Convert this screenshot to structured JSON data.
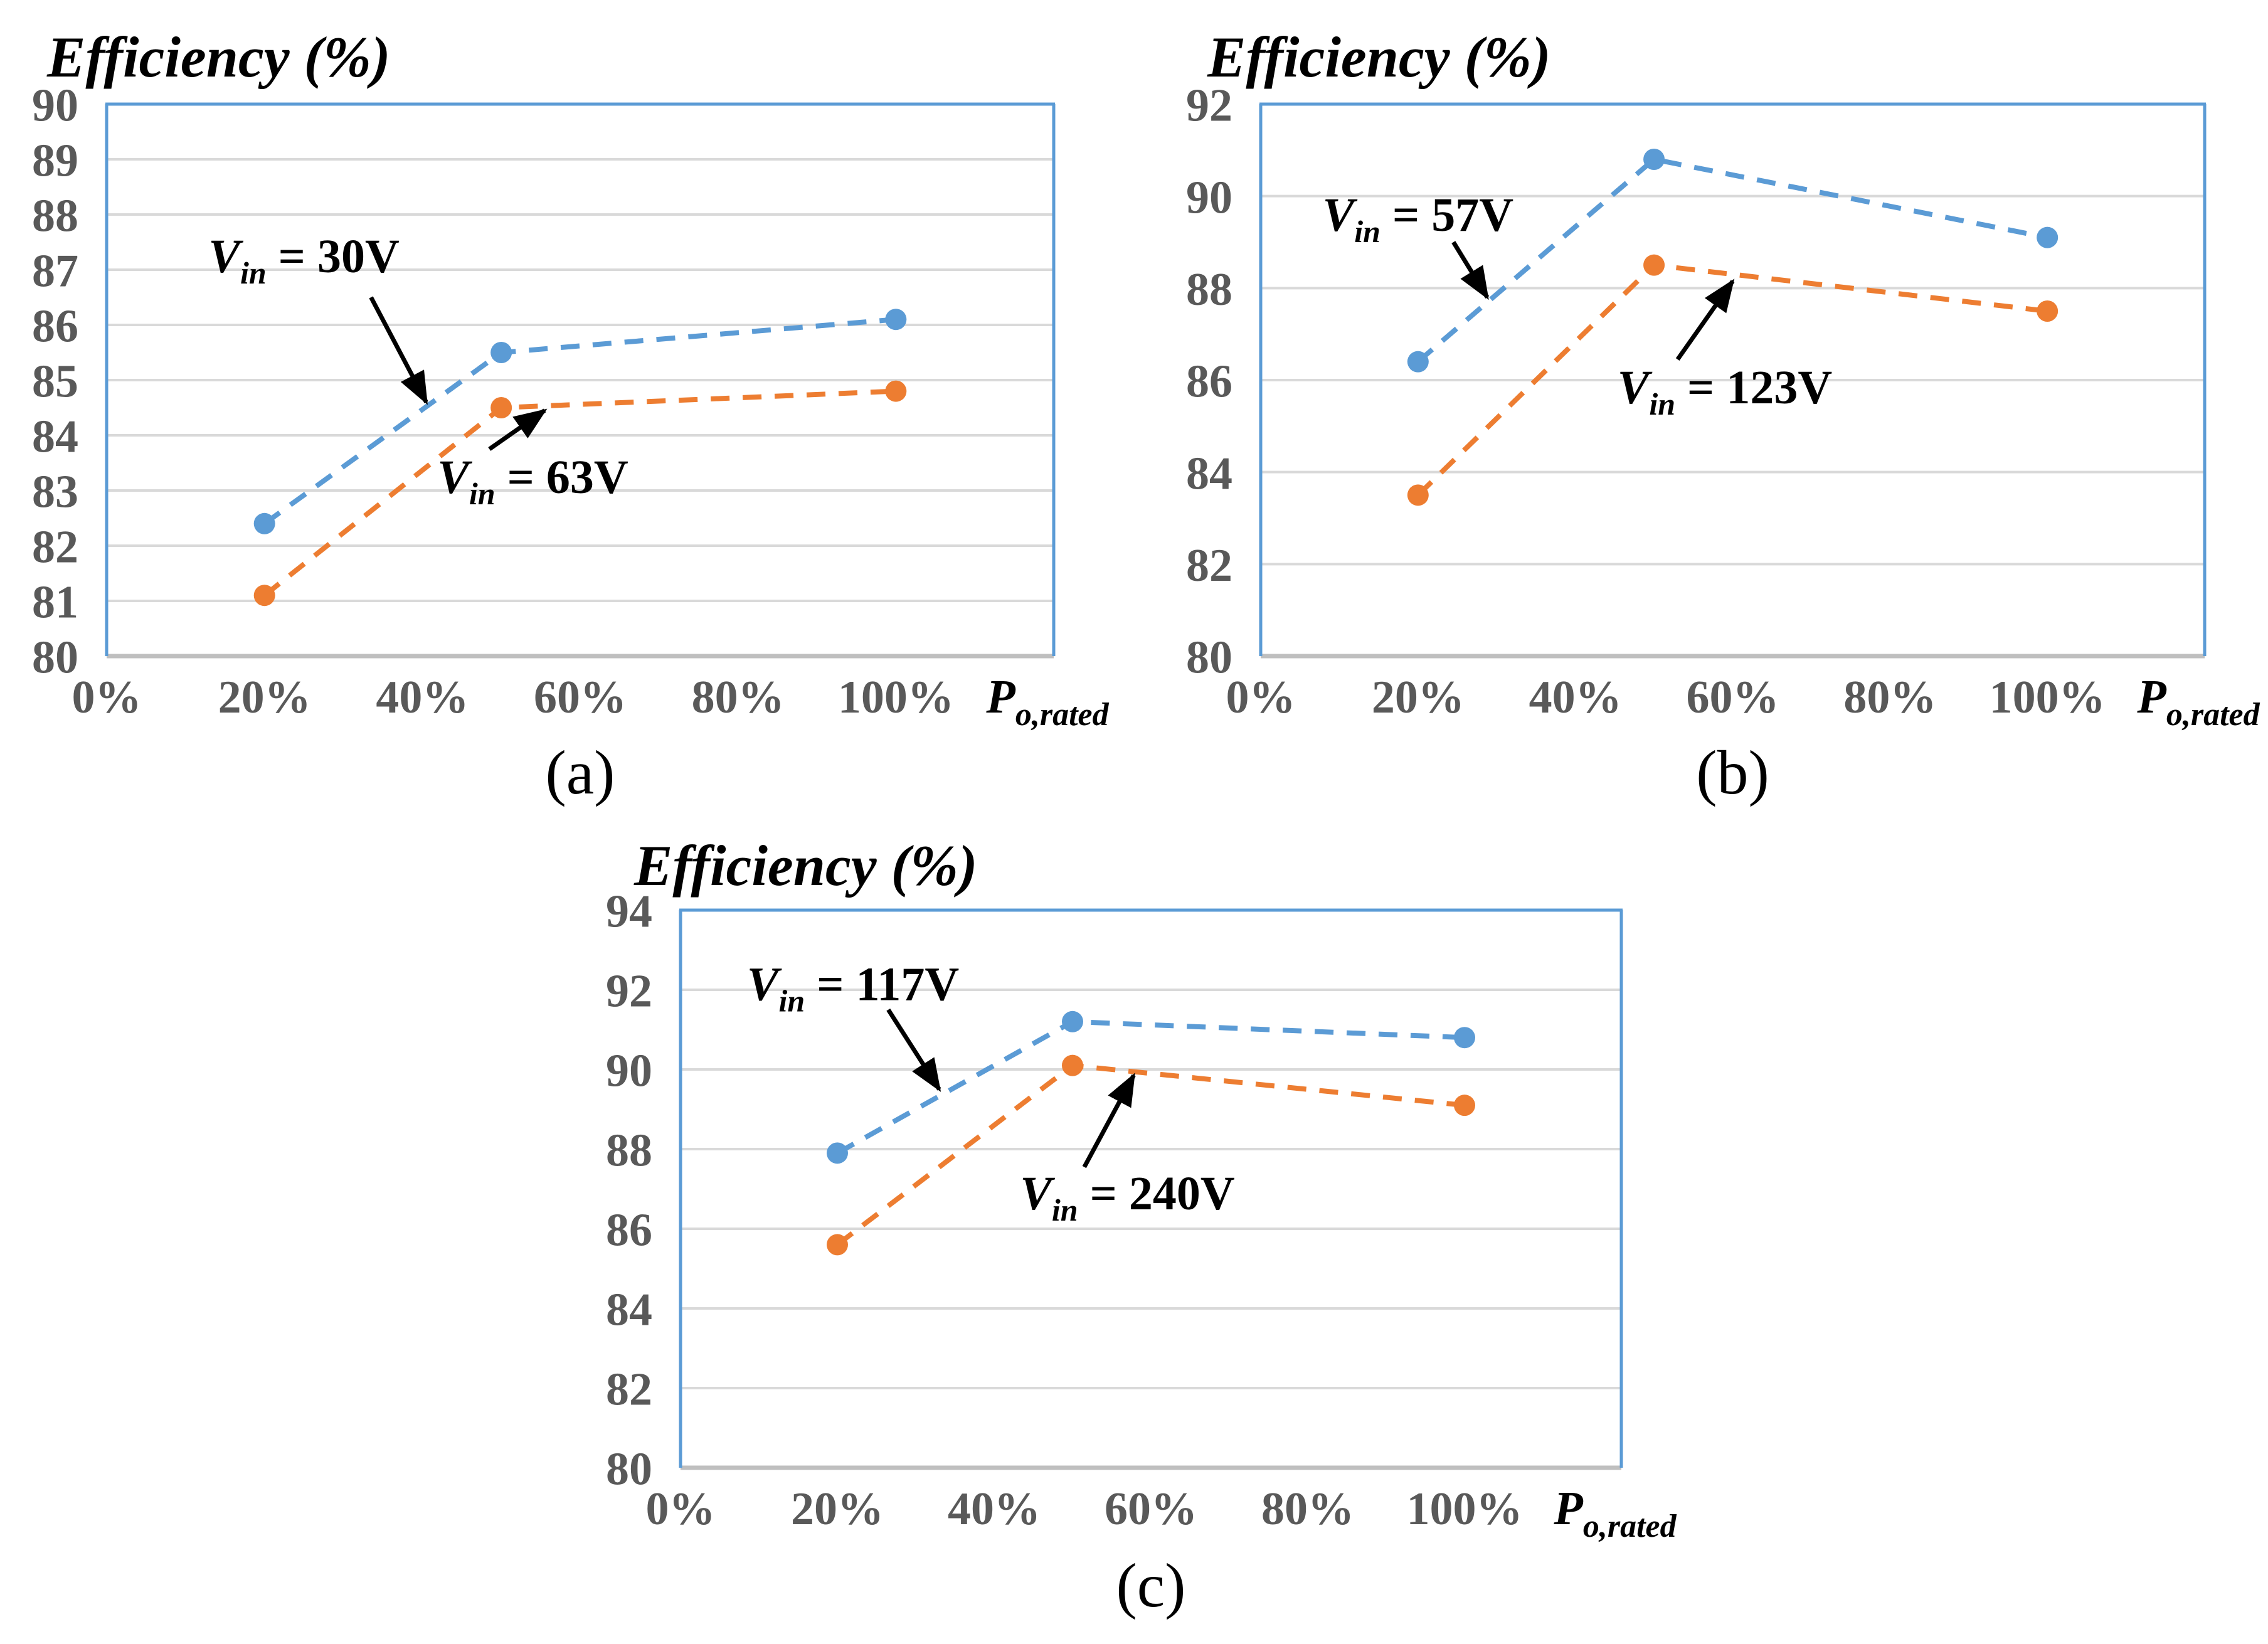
{
  "figure": {
    "background": "#ffffff"
  },
  "colors": {
    "series_blue": "#5B9BD5",
    "series_orange": "#ED7D31",
    "plot_border": "#5B9BD5",
    "gridline": "#D9D9D9",
    "baseline": "#BFBFBF",
    "axis_text": "#595959",
    "annotation": "#000000"
  },
  "chart_data": [
    {
      "id": "a",
      "type": "line",
      "caption": "(a)",
      "title": "Efficiency (%)",
      "xlabel": {
        "base": "P",
        "subscript": "o,rated"
      },
      "xlim": [
        0,
        120
      ],
      "x_tick_values": [
        0,
        20,
        40,
        60,
        80,
        100
      ],
      "x_tick_labels": [
        "0%",
        "20%",
        "40%",
        "60%",
        "80%",
        "100%"
      ],
      "ylim": [
        80,
        90
      ],
      "y_tick_values": [
        80,
        81,
        82,
        83,
        84,
        85,
        86,
        87,
        88,
        89,
        90
      ],
      "y_tick_labels": [
        "80",
        "81",
        "82",
        "83",
        "84",
        "85",
        "86",
        "87",
        "88",
        "89",
        "90"
      ],
      "grid": "horizontal",
      "legend": "none",
      "x": [
        20,
        50,
        100
      ],
      "series": [
        {
          "name": "Vin = 30V",
          "color": "#5B9BD5",
          "values": [
            82.4,
            85.5,
            86.1
          ]
        },
        {
          "name": "Vin = 63V",
          "color": "#ED7D31",
          "values": [
            81.1,
            84.5,
            84.8
          ]
        }
      ],
      "annotations": [
        {
          "var": "V",
          "subscript": "in",
          "value": "30V",
          "text_x": 25,
          "text_y": 87.25,
          "arrow": [
            33.5,
            86.5,
            40.5,
            84.6
          ]
        },
        {
          "var": "V",
          "subscript": "in",
          "value": "63V",
          "text_x": 54,
          "text_y": 83.25,
          "arrow": [
            48.5,
            83.75,
            55.5,
            84.45
          ]
        }
      ]
    },
    {
      "id": "b",
      "type": "line",
      "caption": "(b)",
      "title": "Efficiency (%)",
      "xlabel": {
        "base": "P",
        "subscript": "o,rated"
      },
      "xlim": [
        0,
        120
      ],
      "x_tick_values": [
        0,
        20,
        40,
        60,
        80,
        100
      ],
      "x_tick_labels": [
        "0%",
        "20%",
        "40%",
        "60%",
        "80%",
        "100%"
      ],
      "ylim": [
        80,
        92
      ],
      "y_tick_values": [
        80,
        82,
        84,
        86,
        88,
        90,
        92
      ],
      "y_tick_labels": [
        "80",
        "82",
        "84",
        "86",
        "88",
        "90",
        "92"
      ],
      "grid": "horizontal",
      "legend": "none",
      "x": [
        20,
        50,
        100
      ],
      "series": [
        {
          "name": "Vin = 57V",
          "color": "#5B9BD5",
          "values": [
            86.4,
            90.8,
            89.1
          ]
        },
        {
          "name": "Vin = 123V",
          "color": "#ED7D31",
          "values": [
            83.5,
            88.5,
            87.5
          ]
        }
      ],
      "annotations": [
        {
          "var": "V",
          "subscript": "in",
          "value": "57V",
          "text_x": 20,
          "text_y": 89.6,
          "arrow": [
            24.5,
            89.0,
            28.8,
            87.8
          ]
        },
        {
          "var": "V",
          "subscript": "in",
          "value": "123V",
          "text_x": 59,
          "text_y": 85.85,
          "arrow": [
            53,
            86.45,
            60,
            88.15
          ]
        }
      ]
    },
    {
      "id": "c",
      "type": "line",
      "caption": "(c)",
      "title": "Efficiency (%)",
      "xlabel": {
        "base": "P",
        "subscript": "o,rated"
      },
      "xlim": [
        0,
        120
      ],
      "x_tick_values": [
        0,
        20,
        40,
        60,
        80,
        100
      ],
      "x_tick_labels": [
        "0%",
        "20%",
        "40%",
        "60%",
        "80%",
        "100%"
      ],
      "ylim": [
        80,
        94
      ],
      "y_tick_values": [
        80,
        82,
        84,
        86,
        88,
        90,
        92,
        94
      ],
      "y_tick_labels": [
        "80",
        "82",
        "84",
        "86",
        "88",
        "90",
        "92",
        "94"
      ],
      "grid": "horizontal",
      "legend": "none",
      "x": [
        20,
        50,
        100
      ],
      "series": [
        {
          "name": "Vin = 117V",
          "color": "#5B9BD5",
          "values": [
            87.9,
            91.2,
            90.8
          ]
        },
        {
          "name": "Vin = 240V",
          "color": "#ED7D31",
          "values": [
            85.6,
            90.1,
            89.1
          ]
        }
      ],
      "annotations": [
        {
          "var": "V",
          "subscript": "in",
          "value": "117V",
          "text_x": 22,
          "text_y": 92.15,
          "arrow": [
            26.5,
            91.5,
            33,
            89.5
          ]
        },
        {
          "var": "V",
          "subscript": "in",
          "value": "240V",
          "text_x": 57,
          "text_y": 86.9,
          "arrow": [
            51.5,
            87.55,
            57.8,
            89.85
          ]
        }
      ]
    }
  ]
}
